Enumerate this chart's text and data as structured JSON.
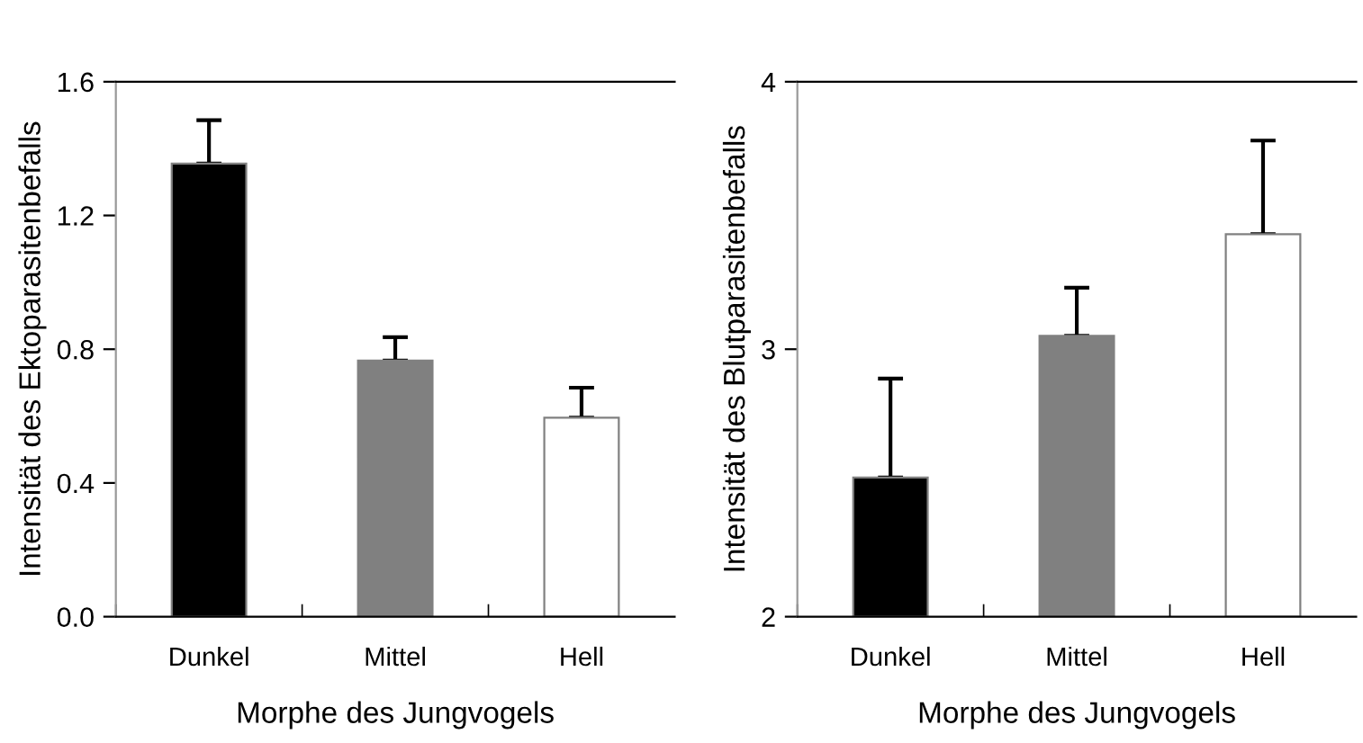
{
  "chart_data": [
    {
      "type": "bar",
      "categories": [
        "Dunkel",
        "Mittel",
        "Hell"
      ],
      "values": [
        1.355,
        0.766,
        0.595
      ],
      "colors": [
        "#000000",
        "#808080",
        "#ffffff"
      ],
      "errors": [
        [
          1.355,
          1.485
        ],
        [
          0.766,
          0.836
        ],
        [
          0.595,
          0.685
        ]
      ],
      "xlabel": "Morphe des Jungvogels",
      "ylabel": "Intensität des Ektoparasitenbefalls",
      "ylim": [
        0,
        1.6
      ],
      "yticks": [
        {
          "value": 0,
          "label": "0.0"
        },
        0.4,
        0.8,
        1.2,
        1.6
      ],
      "grid": false
    },
    {
      "type": "bar",
      "categories": [
        "Dunkel",
        "Mittel",
        "Hell"
      ],
      "values": [
        2.52,
        3.05,
        3.43
      ],
      "colors": [
        "#000000",
        "#808080",
        "#ffffff"
      ],
      "errors": [
        [
          2.52,
          2.89
        ],
        [
          3.05,
          3.23
        ],
        [
          3.43,
          3.78
        ]
      ],
      "xlabel": "Morphe des Jungvogels",
      "ylabel": "Intensität des Blutparasitenbefalls",
      "ylim": [
        2,
        4
      ],
      "yticks": [
        2,
        3,
        4
      ],
      "grid": false
    }
  ]
}
